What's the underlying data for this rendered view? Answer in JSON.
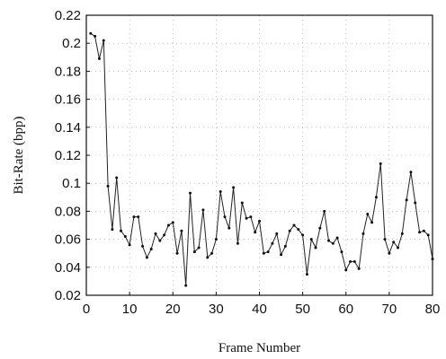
{
  "chart_data": {
    "type": "line",
    "xlabel": "Frame Number",
    "ylabel": "Bit-Rate (bpp)",
    "xlim": [
      0,
      80
    ],
    "ylim": [
      0.02,
      0.22
    ],
    "x_ticks": [
      0,
      10,
      20,
      30,
      40,
      50,
      60,
      70,
      80
    ],
    "y_ticks": [
      0.02,
      0.04,
      0.06,
      0.08,
      0.1,
      0.12,
      0.14,
      0.16,
      0.18,
      0.2,
      0.22
    ],
    "x_tick_labels": [
      "0",
      "10",
      "20",
      "30",
      "40",
      "50",
      "60",
      "70",
      "80"
    ],
    "y_tick_labels": [
      "0.02",
      "0.04",
      "0.06",
      "0.08",
      "0.1",
      "0.12",
      "0.14",
      "0.16",
      "0.18",
      "0.2",
      "0.22"
    ],
    "grid": "dotted",
    "series": [
      {
        "x": [
          1,
          2,
          3,
          4,
          5,
          6,
          7,
          8,
          9,
          10,
          11,
          12,
          13,
          14,
          15,
          16,
          17,
          18,
          19,
          20,
          21,
          22,
          23,
          24,
          25,
          26,
          27,
          28,
          29,
          30,
          31,
          32,
          33,
          34,
          35,
          36,
          37,
          38,
          39,
          40,
          41,
          42,
          43,
          44,
          45,
          46,
          47,
          48,
          49,
          50,
          51,
          52,
          53,
          54,
          55,
          56,
          57,
          58,
          59,
          60,
          61,
          62,
          63,
          64,
          65,
          66,
          67,
          68,
          69,
          70,
          71,
          72,
          73,
          74,
          75,
          76,
          77,
          78,
          79,
          80
        ],
        "y": [
          0.207,
          0.205,
          0.189,
          0.202,
          0.098,
          0.067,
          0.104,
          0.066,
          0.062,
          0.056,
          0.076,
          0.076,
          0.055,
          0.047,
          0.053,
          0.064,
          0.059,
          0.063,
          0.07,
          0.072,
          0.05,
          0.066,
          0.027,
          0.093,
          0.051,
          0.054,
          0.081,
          0.047,
          0.05,
          0.06,
          0.094,
          0.076,
          0.068,
          0.097,
          0.057,
          0.086,
          0.075,
          0.076,
          0.065,
          0.073,
          0.05,
          0.051,
          0.057,
          0.064,
          0.049,
          0.055,
          0.066,
          0.07,
          0.067,
          0.063,
          0.035,
          0.06,
          0.054,
          0.068,
          0.08,
          0.059,
          0.057,
          0.061,
          0.051,
          0.038,
          0.044,
          0.044,
          0.039,
          0.064,
          0.078,
          0.072,
          0.09,
          0.114,
          0.06,
          0.05,
          0.058,
          0.054,
          0.064,
          0.088,
          0.108,
          0.086,
          0.065,
          0.066,
          0.063,
          0.046
        ]
      }
    ]
  }
}
